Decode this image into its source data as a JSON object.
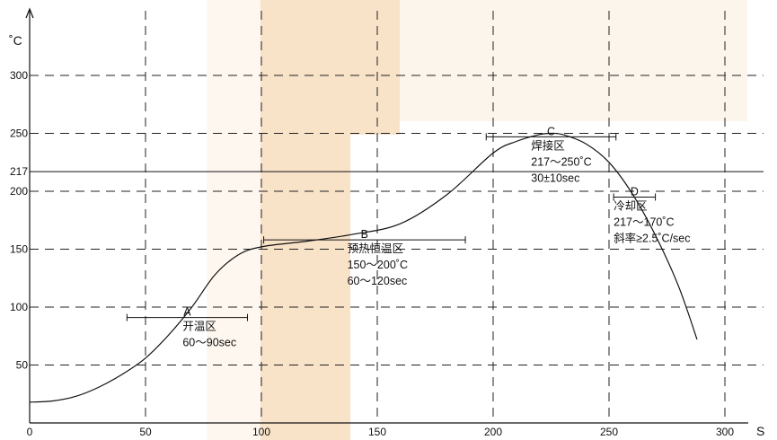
{
  "colors": {
    "background": "#ffffff",
    "band_left": "#fdf3e8",
    "band_mid": "#f8e2c8",
    "band_right": "#faecdc",
    "ink": "#111111"
  },
  "chart_data": {
    "type": "line",
    "title": "",
    "xlabel": "S",
    "ylabel": "˚C",
    "xlim": [
      0,
      310
    ],
    "ylim": [
      0,
      330
    ],
    "x_ticks": [
      0,
      50,
      100,
      150,
      200,
      250,
      300
    ],
    "y_ticks": [
      50,
      100,
      150,
      200,
      250,
      300
    ],
    "x_tick_labels": [
      "0",
      "50",
      "100",
      "150",
      "200",
      "250",
      "300"
    ],
    "y_tick_labels": [
      "50",
      "100",
      "150",
      "200",
      "250",
      "300"
    ],
    "grid": "dashed",
    "reference_line": {
      "y": 217,
      "label": "217"
    },
    "series": [
      {
        "name": "",
        "x": [
          0,
          10,
          20,
          30,
          40,
          50,
          60,
          70,
          80,
          90,
          100,
          120,
          140,
          160,
          180,
          200,
          210,
          220,
          225,
          230,
          240,
          250,
          260,
          270,
          280,
          288
        ],
        "y": [
          18,
          19,
          23,
          31,
          42,
          56,
          76,
          100,
          128,
          145,
          152,
          157,
          163,
          172,
          197,
          233,
          243,
          249,
          250,
          249,
          241,
          225,
          198,
          162,
          118,
          72
        ]
      }
    ],
    "annotations": [
      {
        "id": "A",
        "letter": "A",
        "x_start": 42,
        "x_end": 94,
        "y": 91,
        "lines": [
          "开温区",
          "60～90sec"
        ]
      },
      {
        "id": "B",
        "letter": "B",
        "x_start": 101,
        "x_end": 188,
        "y": 158,
        "lines": [
          "预热恒温区",
          "150～200˚C",
          "60～120sec"
        ]
      },
      {
        "id": "C",
        "letter": "C",
        "x_start": 197,
        "x_end": 253,
        "y": 247,
        "lines": [
          "焊接区",
          "217～250˚C",
          "30±10sec"
        ]
      },
      {
        "id": "D",
        "letter": "D",
        "x_start": 252,
        "x_end": 270,
        "y": 195,
        "lines": [
          "冷却区",
          "217～170˚C",
          "斜率≥2.5˚C/sec"
        ]
      }
    ]
  }
}
